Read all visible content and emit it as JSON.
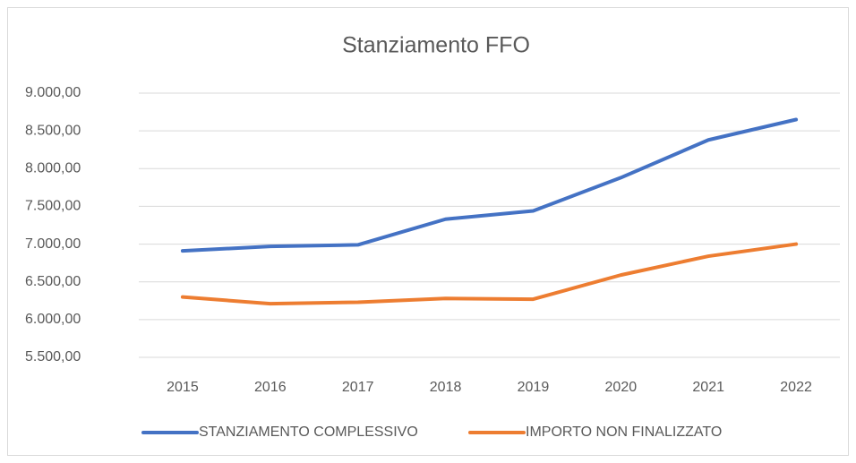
{
  "chart_data": {
    "type": "line",
    "title": "Stanziamento FFO",
    "categories": [
      "2015",
      "2016",
      "2017",
      "2018",
      "2019",
      "2020",
      "2021",
      "2022"
    ],
    "series": [
      {
        "name": "STANZIAMENTO COMPLESSIVO",
        "color": "#4472c4",
        "values": [
          6910,
          6970,
          6990,
          7330,
          7440,
          7880,
          8380,
          8650
        ]
      },
      {
        "name": "IMPORTO NON FINALIZZATO",
        "color": "#ed7d31",
        "values": [
          6300,
          6210,
          6230,
          6280,
          6270,
          6590,
          6840,
          7000
        ]
      }
    ],
    "ylim": [
      5500,
      9000
    ],
    "yticks": [
      {
        "value": 5500,
        "label": "5.500,00"
      },
      {
        "value": 6000,
        "label": "6.000,00"
      },
      {
        "value": 6500,
        "label": "6.500,00"
      },
      {
        "value": 7000,
        "label": "7.000,00"
      },
      {
        "value": 7500,
        "label": "7.500,00"
      },
      {
        "value": 8000,
        "label": "8.000,00"
      },
      {
        "value": 8500,
        "label": "8.500,00"
      },
      {
        "value": 9000,
        "label": "9.000,00"
      }
    ],
    "grid": true,
    "legend": "bottom"
  }
}
